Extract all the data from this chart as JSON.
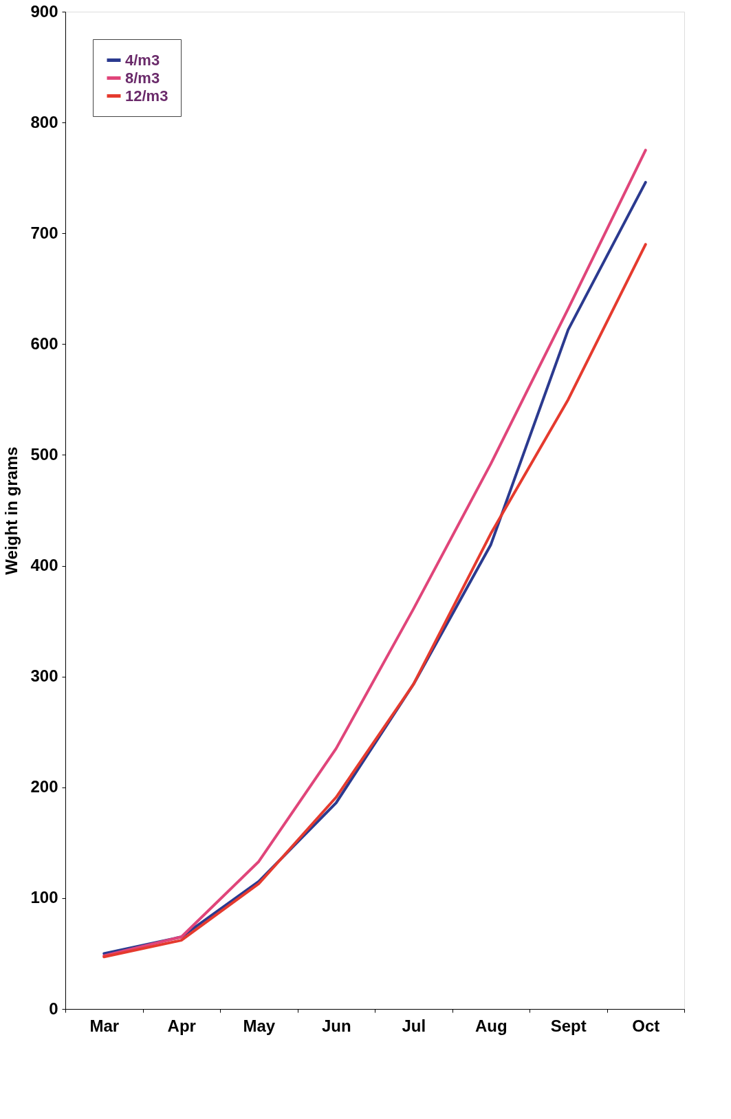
{
  "chart_data": {
    "type": "line",
    "xlabel": null,
    "ylabel": "Weight in grams",
    "categories": [
      "Mar",
      "Apr",
      "May",
      "Jun",
      "Jul",
      "Aug",
      "Sept",
      "Oct"
    ],
    "series": [
      {
        "name": "4/m3",
        "color": "#2b3a8f",
        "values": [
          50,
          65,
          115,
          186,
          293,
          419,
          613,
          746
        ]
      },
      {
        "name": "8/m3",
        "color": "#e0457a",
        "values": [
          48,
          65,
          133,
          235,
          361,
          492,
          632,
          775
        ]
      },
      {
        "name": "12/m3",
        "color": "#e53a2e",
        "values": [
          47,
          62,
          113,
          191,
          293,
          429,
          550,
          690
        ]
      }
    ],
    "ylim": [
      0,
      900
    ],
    "yticks": [
      0,
      100,
      200,
      300,
      400,
      500,
      600,
      700,
      800,
      900
    ],
    "legend": "top left",
    "grid": false,
    "marker": "none",
    "line_style": "solid"
  }
}
